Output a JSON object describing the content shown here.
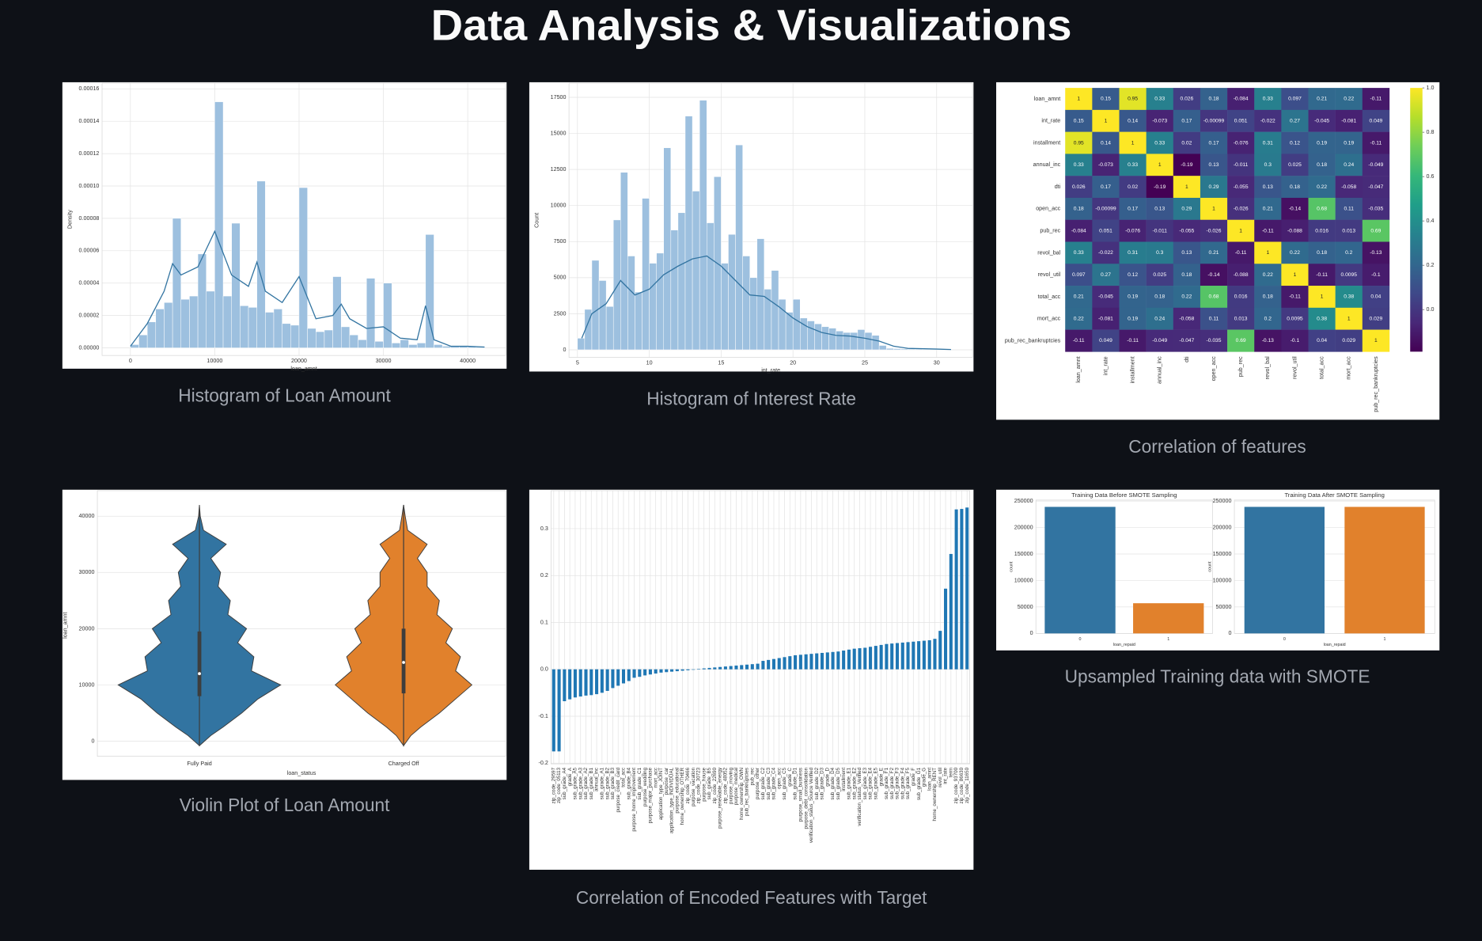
{
  "title": "Data Analysis & Visualizations",
  "chart_data": [
    {
      "type": "histogram",
      "caption": "Histogram of Loan Amount",
      "xlabel": "loan_amnt",
      "ylabel": "Density",
      "color": "#9dc0df",
      "bins": [
        0,
        1000,
        2000,
        3000,
        4000,
        5000,
        6000,
        7000,
        8000,
        9000,
        10000,
        11000,
        12000,
        13000,
        14000,
        15000,
        16000,
        17000,
        18000,
        19000,
        20000,
        21000,
        22000,
        23000,
        24000,
        25000,
        26000,
        27000,
        28000,
        29000,
        30000,
        31000,
        32000,
        33000,
        34000,
        35000,
        36000,
        37000,
        38000,
        39000,
        40000,
        41000,
        42000
      ],
      "values": [
        2e-06,
        8e-06,
        1.6e-05,
        2.4e-05,
        2.8e-05,
        8e-05,
        3e-05,
        3.2e-05,
        5.8e-05,
        3.5e-05,
        0.000152,
        3.2e-05,
        7.7e-05,
        2.6e-05,
        2.5e-05,
        0.000103,
        2.2e-05,
        2.4e-05,
        1.5e-05,
        1.4e-05,
        9.9e-05,
        1.2e-05,
        1e-05,
        1.1e-05,
        4.4e-05,
        1.3e-05,
        8e-06,
        5e-06,
        4.3e-05,
        4e-06,
        4e-05,
        3e-06,
        5e-06,
        2e-06,
        3e-06,
        7e-05,
        2e-06,
        1e-06,
        1e-06,
        1e-06,
        1e-06,
        5e-07
      ],
      "kde": {
        "color": "#3274a1",
        "x": [
          0,
          2000,
          4000,
          5000,
          6000,
          8000,
          10000,
          12000,
          14000,
          15000,
          16000,
          18000,
          20000,
          22000,
          24000,
          25000,
          26000,
          28000,
          30000,
          32000,
          34000,
          35000,
          36000,
          38000,
          40000,
          42000
        ],
        "y": [
          1e-06,
          1.5e-05,
          3.5e-05,
          5.2e-05,
          4.5e-05,
          5e-05,
          7.2e-05,
          4.5e-05,
          3.8e-05,
          5.3e-05,
          3.5e-05,
          2.8e-05,
          4.4e-05,
          1.8e-05,
          2e-05,
          2.7e-05,
          1.8e-05,
          1.2e-05,
          1.3e-05,
          6e-06,
          5e-06,
          2.6e-05,
          5e-06,
          1e-06,
          1e-06,
          5e-07
        ]
      },
      "xlim": [
        -3360,
        44500
      ],
      "xticks": [
        0,
        10000,
        20000,
        30000,
        40000
      ],
      "ylim": [
        -4.7e-06,
        0.0001635
      ],
      "yticks": [
        {
          "value": 0,
          "label": "0.00000"
        },
        {
          "value": 2e-05,
          "label": "0.00002"
        },
        {
          "value": 4e-05,
          "label": "0.00004"
        },
        {
          "value": 6e-05,
          "label": "0.00006"
        },
        {
          "value": 8e-05,
          "label": "0.00008"
        },
        {
          "value": 0.0001,
          "label": "0.00010"
        },
        {
          "value": 0.00012,
          "label": "0.00012"
        },
        {
          "value": 0.00014,
          "label": "0.00014"
        },
        {
          "value": 0.00016,
          "label": "0.00016"
        }
      ],
      "grid": true
    },
    {
      "type": "histogram",
      "caption": "Histogram of Interest Rate",
      "xlabel": "int_rate",
      "ylabel": "Count",
      "color": "#9dc0df",
      "bins": [
        5,
        5.5,
        6,
        6.5,
        7,
        7.5,
        8,
        8.5,
        9,
        9.5,
        10,
        10.5,
        11,
        11.5,
        12,
        12.5,
        13,
        13.5,
        14,
        14.5,
        15,
        15.5,
        16,
        16.5,
        17,
        17.5,
        18,
        18.5,
        19,
        19.5,
        20,
        20.5,
        21,
        21.5,
        22,
        22.5,
        23,
        23.5,
        24,
        24.5,
        25,
        25.5,
        26,
        26.5,
        27,
        27.5,
        28,
        28.5,
        29,
        29.5,
        30,
        30.5,
        31
      ],
      "values": [
        800,
        2800,
        6200,
        4800,
        3000,
        9000,
        12300,
        6500,
        4000,
        10500,
        6000,
        6700,
        14000,
        8300,
        9500,
        16200,
        11000,
        17300,
        8800,
        12000,
        6000,
        8000,
        14200,
        6500,
        5000,
        7700,
        4200,
        5500,
        3500,
        2600,
        3500,
        2200,
        2000,
        1800,
        1600,
        1500,
        1300,
        1200,
        1200,
        1400,
        1200,
        1000,
        300,
        100,
        80,
        60,
        50,
        40,
        30,
        30,
        20,
        20
      ],
      "kde": {
        "color": "#3274a1",
        "x": [
          5.3,
          6,
          7,
          8,
          9,
          10,
          11,
          12,
          13,
          14,
          15,
          16,
          17,
          18,
          19,
          20,
          21,
          22,
          23,
          24,
          25,
          26,
          27,
          28,
          30,
          31
        ],
        "y": [
          800,
          2500,
          3200,
          4800,
          3800,
          4200,
          5200,
          5800,
          6300,
          6500,
          5800,
          4800,
          3800,
          3700,
          3000,
          2200,
          1600,
          1200,
          1000,
          950,
          800,
          600,
          250,
          100,
          50,
          20
        ]
      },
      "xlim": [
        4.41,
        32.5
      ],
      "xticks": [
        5,
        10,
        15,
        20,
        25,
        30
      ],
      "ylim": [
        -524,
        18480
      ],
      "yticks": [
        0,
        2500,
        5000,
        7500,
        10000,
        12500,
        15000,
        17500
      ],
      "grid": true
    },
    {
      "type": "heatmap",
      "caption": "Correlation of features",
      "labels": [
        "loan_amnt",
        "int_rate",
        "installment",
        "annual_inc",
        "dti",
        "open_acc",
        "pub_rec",
        "revol_bal",
        "revol_util",
        "total_acc",
        "mort_acc",
        "pub_rec_bankruptcies"
      ],
      "matrix": [
        [
          1,
          0.15,
          0.95,
          0.33,
          0.026,
          0.18,
          -0.084,
          0.33,
          0.097,
          0.21,
          0.22,
          -0.11
        ],
        [
          0.15,
          1,
          0.14,
          -0.073,
          0.17,
          -0.00099,
          0.051,
          -0.022,
          0.27,
          -0.045,
          -0.081,
          0.049
        ],
        [
          0.95,
          0.14,
          1,
          0.33,
          0.02,
          0.17,
          -0.076,
          0.31,
          0.12,
          0.19,
          0.19,
          -0.11
        ],
        [
          0.33,
          -0.073,
          0.33,
          1,
          -0.19,
          0.13,
          -0.011,
          0.3,
          0.025,
          0.18,
          0.24,
          -0.049
        ],
        [
          0.026,
          0.17,
          0.02,
          -0.19,
          1,
          0.29,
          -0.055,
          0.13,
          0.18,
          0.22,
          -0.058,
          -0.047
        ],
        [
          0.18,
          -0.00099,
          0.17,
          0.13,
          0.29,
          1,
          -0.026,
          0.21,
          -0.14,
          0.68,
          0.11,
          -0.035
        ],
        [
          -0.084,
          0.051,
          -0.076,
          -0.011,
          -0.055,
          -0.026,
          1,
          -0.11,
          -0.088,
          0.016,
          0.013,
          0.69
        ],
        [
          0.33,
          -0.022,
          0.31,
          0.3,
          0.13,
          0.21,
          -0.11,
          1,
          0.22,
          0.18,
          0.2,
          -0.13
        ],
        [
          0.097,
          0.27,
          0.12,
          0.025,
          0.18,
          -0.14,
          -0.088,
          0.22,
          1,
          -0.11,
          0.0095,
          -0.1
        ],
        [
          0.21,
          -0.045,
          0.19,
          0.18,
          0.22,
          0.68,
          0.016,
          0.18,
          -0.11,
          1,
          0.38,
          0.04
        ],
        [
          0.22,
          -0.081,
          0.19,
          0.24,
          -0.058,
          0.11,
          0.013,
          0.2,
          0.0095,
          0.38,
          1,
          0.029
        ],
        [
          -0.11,
          0.049,
          -0.11,
          -0.049,
          -0.047,
          -0.035,
          0.69,
          -0.13,
          -0.1,
          0.04,
          0.029,
          1
        ]
      ],
      "colormap": [
        "#440154",
        "#482878",
        "#3e4989",
        "#31688e",
        "#26828e",
        "#1f9e89",
        "#35b779",
        "#6ece58",
        "#b5de2b",
        "#fde725"
      ],
      "clim": [
        -0.19,
        1
      ],
      "cticks": [
        {
          "value": 1,
          "label": "1.0"
        },
        0.8,
        0.6,
        0.4,
        0.2,
        {
          "value": 0,
          "label": "0.0"
        }
      ]
    },
    {
      "type": "violin",
      "caption": "Violin Plot of Loan Amount",
      "xlabel": "loan_status",
      "ylabel": "loan_amnt",
      "categories": [
        "Fully Paid",
        "Charged Off"
      ],
      "colors": [
        "#3274a1",
        "#e1812c"
      ],
      "y_grid": [
        -800,
        1000,
        2500,
        5000,
        7500,
        10000,
        12500,
        15000,
        17500,
        20000,
        22500,
        25000,
        27500,
        30000,
        32500,
        35000,
        37500,
        40000,
        42000
      ],
      "density": [
        [
          0,
          0.14,
          0.29,
          0.52,
          0.72,
          1,
          0.64,
          0.67,
          0.47,
          0.58,
          0.35,
          0.38,
          0.23,
          0.26,
          0.14,
          0.33,
          0.05,
          0.01,
          0
        ],
        [
          0,
          0.09,
          0.21,
          0.44,
          0.64,
          0.84,
          0.64,
          0.7,
          0.52,
          0.6,
          0.41,
          0.44,
          0.29,
          0.29,
          0.17,
          0.29,
          0.05,
          0.02,
          0
        ]
      ],
      "box": [
        {
          "min": -800,
          "q1": 8000,
          "median": 12000,
          "q3": 19500,
          "max": 41000
        },
        {
          "min": -800,
          "q1": 8500,
          "median": 14000,
          "q3": 20000,
          "max": 42000
        }
      ],
      "ylim": [
        -2690,
        44540
      ],
      "yticks": [
        0,
        10000,
        20000,
        30000,
        40000
      ],
      "grid": true
    },
    {
      "type": "bar",
      "caption": "Correlation of Encoded Features with Target",
      "color": "#1f77b4",
      "categories": [
        "zip_code_29597",
        "zip_code_05113",
        "sub_grade_A4",
        "grade_A",
        "sub_grade_A5",
        "sub_grade_A3",
        "sub_grade_A2",
        "sub_grade_B1",
        "annual_inc",
        "sub_grade_A1",
        "sub_grade_B2",
        "sub_grade_B3",
        "purpose_credit_card",
        "total_acc",
        "sub_grade_B4",
        "purpose_home_improvement",
        "sub_grade_C1",
        "purpose_wedding",
        "purpose_major_purchase",
        "mort_acc",
        "application_type_JOINT",
        "purpose_car",
        "application_type_INDIVIDUAL",
        "purpose_educational",
        "home_ownership_OTHER",
        "zip_code_70466",
        "purpose_vacation",
        "zip_code_30723",
        "purpose_house",
        "sub_grade_B5",
        "zip_code_22690",
        "purpose_renewable_energy",
        "zip_code_48052",
        "purpose_moving",
        "purpose_medical",
        "home_ownership_OWN",
        "pub_rec_bankruptcies",
        "pub_rec",
        "purpose_other",
        "sub_grade_C2",
        "sub_grade_C3",
        "sub_grade_C4",
        "open_acc",
        "sub_grade_C5",
        "grade_C",
        "sub_grade_D1",
        "purpose_small_business",
        "purpose_debt_consolidation",
        "verification_status_Source Verified",
        "sub_grade_D2",
        "sub_grade_D3",
        "grade_D",
        "sub_grade_D4",
        "sub_grade_D5",
        "installment",
        "sub_grade_E1",
        "sub_grade_E2",
        "verification_status_Verified",
        "sub_grade_E3",
        "sub_grade_E4",
        "sub_grade_E5",
        "grade_E",
        "sub_grade_F1",
        "sub_grade_F2",
        "sub_grade_F3",
        "sub_grade_F4",
        "sub_grade_F5",
        "grade_F",
        "sub_grade_G1",
        "grade_G",
        "loan_amnt",
        "home_ownership_RENT",
        "revol_util",
        "int_rate",
        "term",
        "zip_code_93700",
        "zip_code_86630",
        "zip_code_11650"
      ],
      "values": [
        -0.175,
        -0.175,
        -0.068,
        -0.064,
        -0.06,
        -0.058,
        -0.056,
        -0.055,
        -0.053,
        -0.05,
        -0.046,
        -0.04,
        -0.035,
        -0.03,
        -0.025,
        -0.018,
        -0.016,
        -0.013,
        -0.011,
        -0.009,
        -0.007,
        -0.006,
        -0.005,
        -0.004,
        -0.003,
        -0.002,
        -0.001,
        0.001,
        0.002,
        0.003,
        0.004,
        0.005,
        0.006,
        0.007,
        0.008,
        0.009,
        0.01,
        0.011,
        0.012,
        0.018,
        0.02,
        0.022,
        0.024,
        0.026,
        0.028,
        0.03,
        0.031,
        0.032,
        0.033,
        0.034,
        0.035,
        0.036,
        0.037,
        0.038,
        0.04,
        0.042,
        0.044,
        0.045,
        0.046,
        0.048,
        0.05,
        0.052,
        0.054,
        0.055,
        0.056,
        0.057,
        0.058,
        0.059,
        0.06,
        0.061,
        0.062,
        0.065,
        0.082,
        0.172,
        0.246,
        0.341,
        0.342,
        0.345
      ],
      "ylim": [
        -0.2016,
        0.381
      ],
      "yticks": [
        -0.2,
        -0.1,
        {
          "value": 0,
          "label": "0.0"
        },
        0.1,
        0.2,
        0.3
      ],
      "grid": true
    },
    {
      "type": "bar",
      "caption": "Upsampled Training data with SMOTE",
      "xlabel": "loan_repaid",
      "ylabel": "count",
      "panels": [
        {
          "title": "Training Data Before SMOTE Sampling",
          "categories": [
            "0",
            "1"
          ],
          "values": [
            239000,
            57000
          ],
          "colors": [
            "#3274a1",
            "#e1812c"
          ]
        },
        {
          "title": "Training Data After SMOTE Sampling",
          "categories": [
            "0",
            "1"
          ],
          "values": [
            239000,
            239000
          ],
          "colors": [
            "#3274a1",
            "#e1812c"
          ]
        }
      ],
      "ylim": [
        0,
        251800
      ],
      "yticks": [
        0,
        50000,
        100000,
        150000,
        200000,
        250000
      ],
      "grid": true
    }
  ]
}
